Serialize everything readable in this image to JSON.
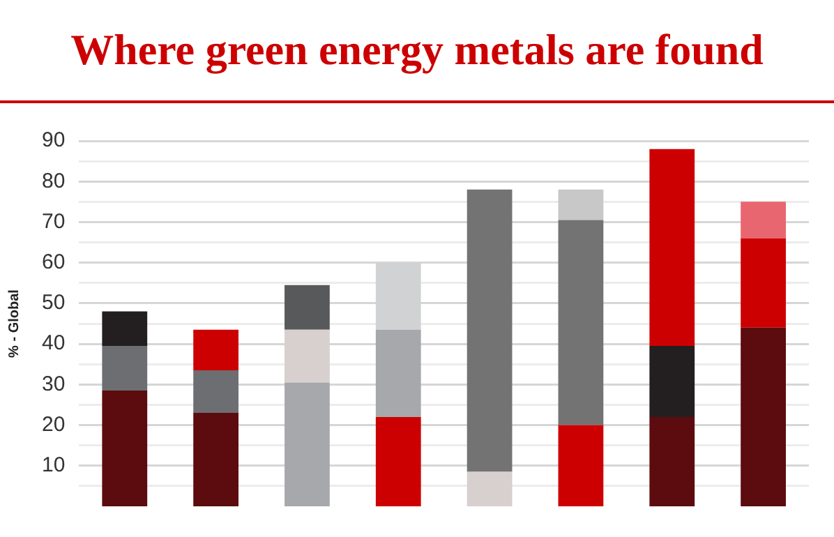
{
  "chart_data": {
    "type": "bar",
    "title": "Where green energy metals are found",
    "ylabel": "% - Global",
    "stacked": true,
    "categories": [
      null,
      null,
      null,
      null,
      null,
      null,
      null,
      null
    ],
    "series": [
      {
        "colors": [
          "#5c0b0e",
          "#5c0b0e",
          "#a7a8ab",
          "#cc0000",
          "#d8cfcf",
          "#cc0000",
          "#5c0b0e",
          "#5c0b0e"
        ],
        "values": [
          28.5,
          23,
          30.5,
          22,
          8.5,
          20,
          22,
          44
        ]
      },
      {
        "colors": [
          "#6d6e71",
          "#6d6e71",
          "#d8cfcf",
          "#a7a8ab",
          "#737373",
          "#737373",
          "#231f20",
          "#cc0000"
        ],
        "values": [
          11,
          10.5,
          13,
          21.5,
          69.5,
          50.5,
          17.5,
          22
        ]
      },
      {
        "colors": [
          "#231f20",
          "#cc0000",
          "#58595b",
          "#d1d2d4",
          null,
          "#c8c8c8",
          "#cc0000",
          "#e8666f"
        ],
        "values": [
          8.5,
          10,
          11,
          16.5,
          null,
          7.5,
          48.5,
          9
        ]
      }
    ],
    "ylim": [
      0,
      90
    ],
    "yticks": [
      {
        "value": 5,
        "label": null
      },
      10,
      {
        "value": 15,
        "label": null
      },
      20,
      {
        "value": 25,
        "label": null
      },
      30,
      {
        "value": 35,
        "label": null
      },
      40,
      {
        "value": 45,
        "label": null
      },
      50,
      {
        "value": 55,
        "label": null
      },
      60,
      {
        "value": 65,
        "label": null
      },
      70,
      {
        "value": 75,
        "label": null
      },
      80,
      {
        "value": 85,
        "label": null
      },
      90
    ],
    "grid": "y",
    "tick_labels": "y",
    "legend": false
  }
}
